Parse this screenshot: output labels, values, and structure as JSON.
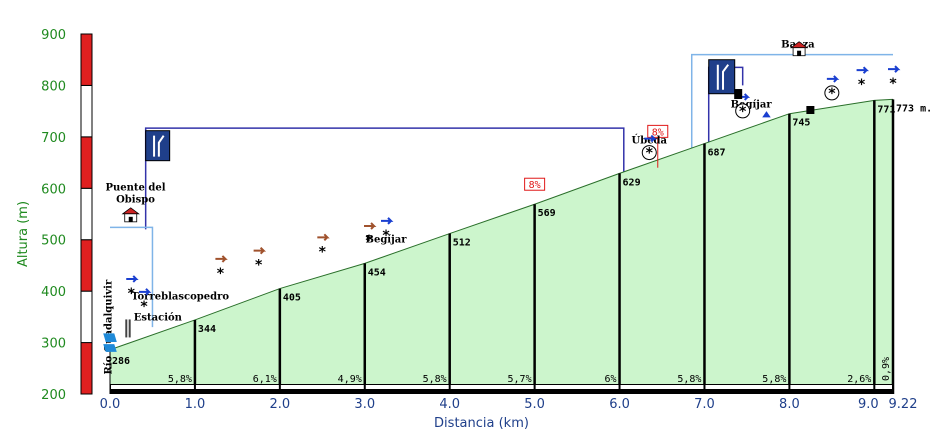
{
  "chart_data": {
    "type": "area",
    "title": "",
    "xlabel": "Distancia (km)",
    "ylabel": "Altura (m)",
    "xlim": [
      0,
      9.22
    ],
    "ylim": [
      200,
      900
    ],
    "xticks": [
      "0.0",
      "1.0",
      "2.0",
      "3.0",
      "4.0",
      "5.0",
      "6.0",
      "7.0",
      "8.0",
      "9.0",
      "9.22"
    ],
    "xtick_values": [
      0,
      1,
      2,
      3,
      4,
      5,
      6,
      7,
      8,
      9,
      9.22
    ],
    "yticks": [
      200,
      300,
      400,
      500,
      600,
      700,
      800,
      900
    ],
    "profile": [
      {
        "x": 0.0,
        "y": 286,
        "label": "286"
      },
      {
        "x": 1.0,
        "y": 344,
        "label": "344"
      },
      {
        "x": 2.0,
        "y": 405,
        "label": "405"
      },
      {
        "x": 3.0,
        "y": 454,
        "label": "454"
      },
      {
        "x": 4.0,
        "y": 512,
        "label": "512"
      },
      {
        "x": 5.0,
        "y": 569,
        "label": "569"
      },
      {
        "x": 6.0,
        "y": 629,
        "label": "629"
      },
      {
        "x": 7.0,
        "y": 687,
        "label": "687"
      },
      {
        "x": 8.0,
        "y": 745,
        "label": "745"
      },
      {
        "x": 9.0,
        "y": 771,
        "label": "771"
      },
      {
        "x": 9.22,
        "y": 773,
        "label": "773 m."
      }
    ],
    "gradients": [
      "5,8%",
      "6,1%",
      "4,9%",
      "5,8%",
      "5,7%",
      "6%",
      "5,8%",
      "5,8%",
      "2,6%",
      "0,9%"
    ],
    "max_gradients": [
      {
        "x": 5.0,
        "label": "8%"
      },
      {
        "x": 6.45,
        "label": "8%"
      }
    ],
    "places": [
      {
        "x": 0.3,
        "name": "Puente del Obispo"
      },
      {
        "x": 0.4,
        "name": "Torreblascopedro"
      },
      {
        "x": 0.5,
        "name": "Estación"
      },
      {
        "x": 0.05,
        "name": "Río Guadalquivir"
      },
      {
        "x": 3.25,
        "name": "Begíjar"
      },
      {
        "x": 6.35,
        "name": "Úbeda"
      },
      {
        "x": 7.55,
        "name": "Begíjar"
      },
      {
        "x": 8.1,
        "name": "Baeza"
      }
    ],
    "colors": {
      "fill": "#ccf5cc",
      "outline": "#2a6f2a",
      "tick_green": "#1f8a1f",
      "tick_blue": "#1f3f8a",
      "scale_red": "#e02020",
      "junction_line": "#3333aa",
      "town_line": "#7fb4e8",
      "sign_blue": "#1f3f8a",
      "max_grad_red": "#e01818",
      "arrow_blue": "#1a3fd0",
      "arrow_brown": "#a0522d"
    },
    "grid": false,
    "legend": "none"
  }
}
